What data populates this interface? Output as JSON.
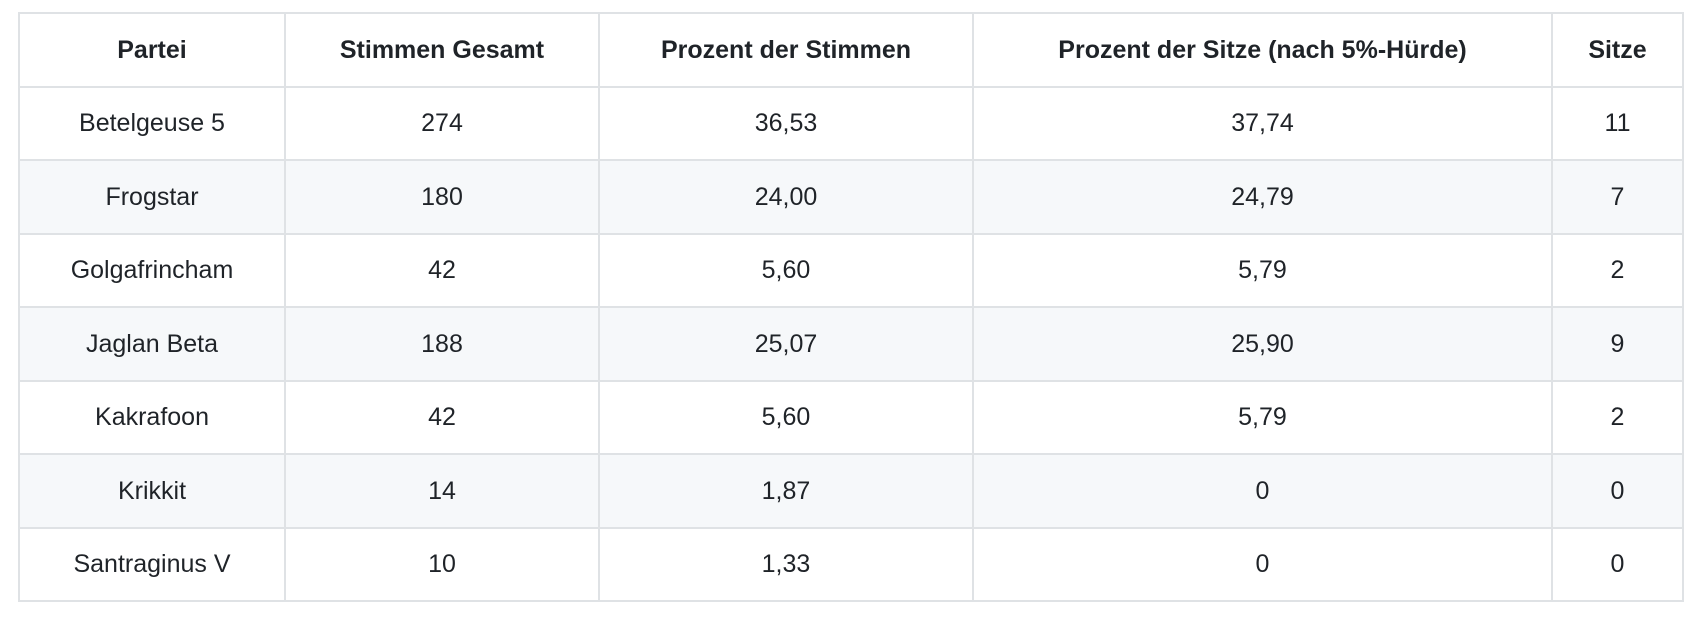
{
  "colors": {
    "background": "#ffffff",
    "row_stripe": "#f6f8fa",
    "border": "#dfe2e5",
    "text": "#1f2328"
  },
  "table": {
    "columns": [
      "Partei",
      "Stimmen Gesamt",
      "Prozent der Stimmen",
      "Prozent der Sitze (nach 5%-Hürde)",
      "Sitze"
    ],
    "rows": [
      [
        "Betelgeuse 5",
        "274",
        "36,53",
        "37,74",
        "11"
      ],
      [
        "Frogstar",
        "180",
        "24,00",
        "24,79",
        "7"
      ],
      [
        "Golgafrincham",
        "42",
        "5,60",
        "5,79",
        "2"
      ],
      [
        "Jaglan Beta",
        "188",
        "25,07",
        "25,90",
        "9"
      ],
      [
        "Kakrafoon",
        "42",
        "5,60",
        "5,79",
        "2"
      ],
      [
        "Krikkit",
        "14",
        "1,87",
        "0",
        "0"
      ],
      [
        "Santraginus V",
        "10",
        "1,33",
        "0",
        "0"
      ]
    ]
  }
}
